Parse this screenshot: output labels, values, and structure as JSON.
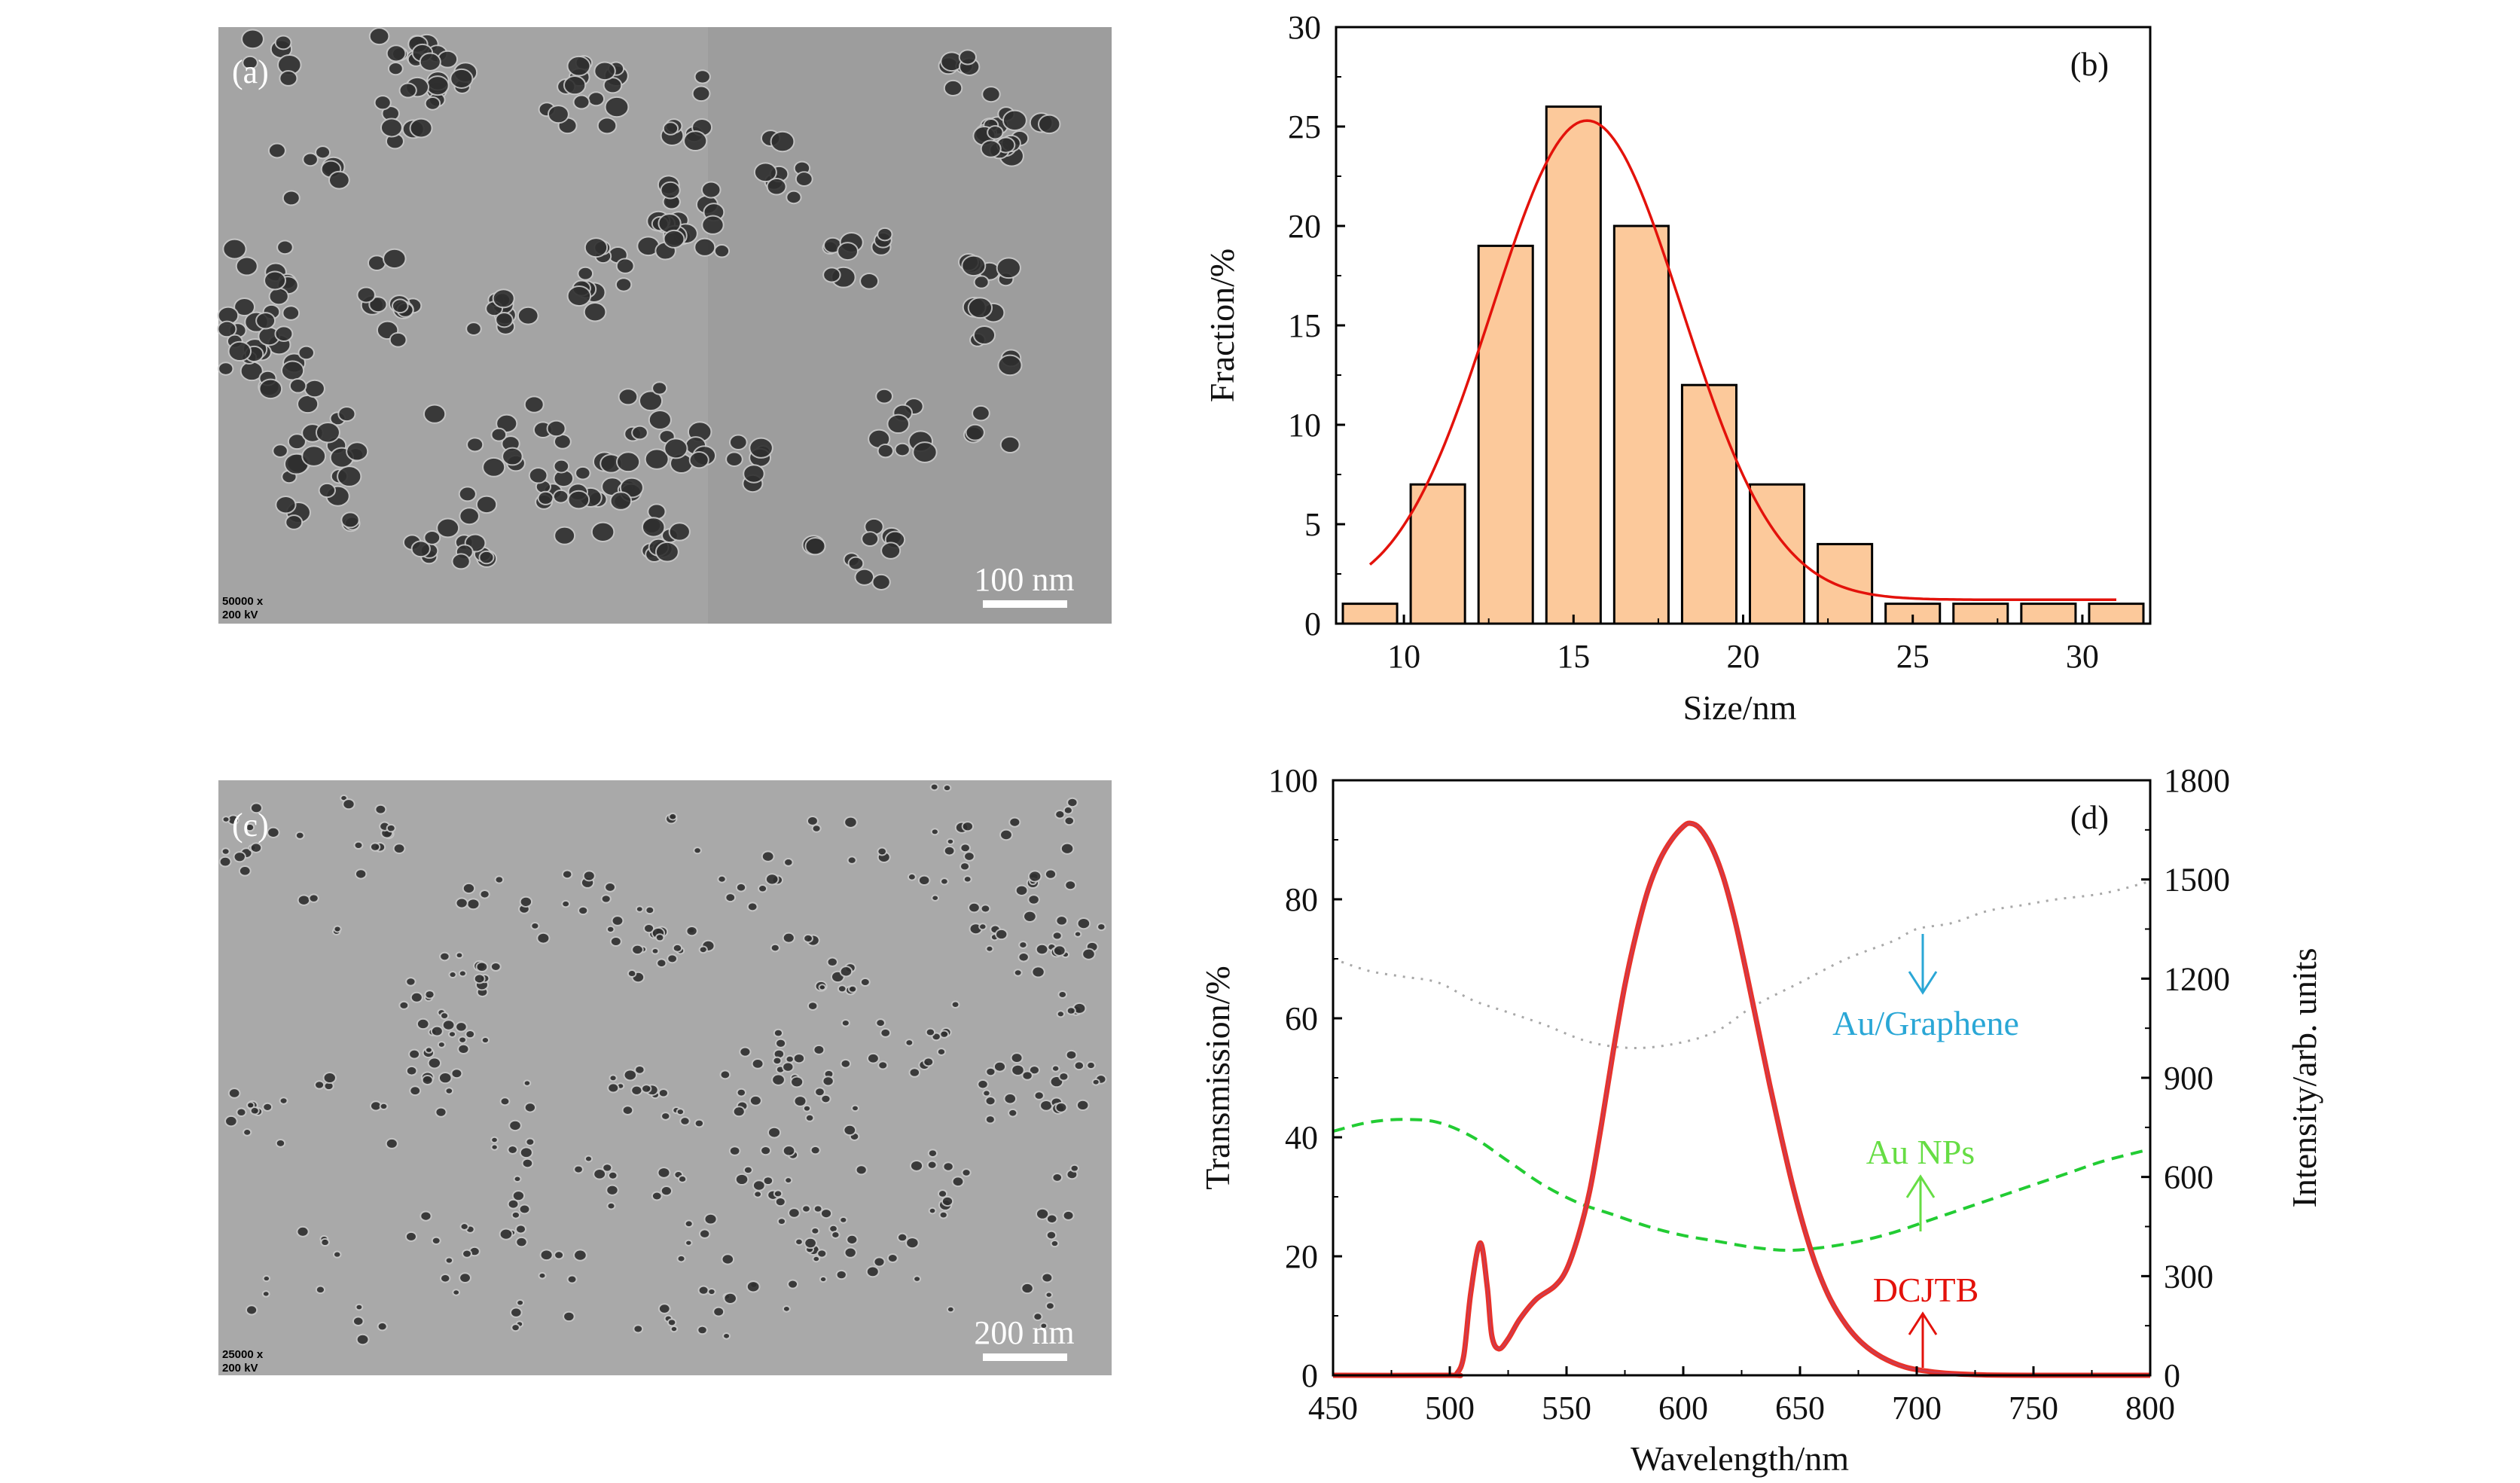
{
  "panels": {
    "a": {
      "label": "(a)",
      "scale_bar": "100 nm",
      "magnification": "50000 x",
      "voltage": "200 kV"
    },
    "c": {
      "label": "(c)",
      "scale_bar": "200 nm",
      "magnification": "25000 x",
      "voltage": "200 kV"
    }
  },
  "chart_data": [
    {
      "panel": "(b)",
      "type": "bar",
      "xlabel": "Size/nm",
      "ylabel": "Fraction/%",
      "xlim": [
        8,
        32
      ],
      "ylim": [
        0,
        30
      ],
      "xticks": [
        10,
        15,
        20,
        25,
        30
      ],
      "yticks": [
        0,
        5,
        10,
        15,
        20,
        25,
        30
      ],
      "bar_width": 1.6,
      "x": [
        9,
        11,
        13,
        15,
        17,
        19,
        21,
        23,
        25,
        27,
        29,
        31
      ],
      "values": [
        1,
        7,
        19,
        26,
        20,
        12,
        7,
        4,
        1,
        1,
        1,
        1
      ],
      "bar_color": "#fcc99b",
      "fit": {
        "type": "gaussian",
        "y0": 1.2,
        "xc": 15.4,
        "sigma": 2.8,
        "amplitude": 24.1,
        "range": [
          9,
          31
        ],
        "color": "#e3120b"
      },
      "grid": false
    },
    {
      "panel": "(d)",
      "type": "line",
      "xlabel": "Wavelength/nm",
      "ylabel": "Transmission/%",
      "ylabel_right": "Intensity/arb. units",
      "xlim": [
        450,
        800
      ],
      "ylim": [
        0,
        100
      ],
      "ylim_right": [
        0,
        1800
      ],
      "xticks": [
        450,
        500,
        550,
        600,
        650,
        700,
        750,
        800
      ],
      "yticks": [
        0,
        20,
        40,
        60,
        80,
        100
      ],
      "yticks_right": [
        0,
        300,
        600,
        900,
        1200,
        1500,
        1800
      ],
      "grid": false,
      "series": [
        {
          "name": "Au/Graphene",
          "axis": "left",
          "style": "dotted",
          "color": "#a8a8a8",
          "label_color": "#2aa7d6",
          "x": [
            450,
            465,
            480,
            495,
            510,
            525,
            540,
            560,
            580,
            600,
            615,
            630,
            650,
            670,
            690,
            700,
            715,
            730,
            745,
            760,
            780,
            800
          ],
          "y": [
            70,
            68,
            67,
            66,
            63,
            61,
            59,
            56,
            55,
            56,
            58,
            62,
            66,
            70,
            73,
            75,
            76,
            78,
            79,
            80,
            81,
            83
          ]
        },
        {
          "name": "Au NPs",
          "axis": "left",
          "style": "dashed",
          "color": "#22cc33",
          "label_color": "#66dd44",
          "x": [
            450,
            465,
            480,
            495,
            510,
            525,
            540,
            555,
            570,
            585,
            600,
            615,
            630,
            645,
            660,
            675,
            690,
            705,
            720,
            735,
            750,
            765,
            780,
            800
          ],
          "y": [
            41,
            42.5,
            43,
            42.5,
            40,
            36,
            32,
            29,
            27,
            25,
            23.5,
            22.5,
            21.5,
            21,
            21.5,
            22.5,
            24,
            26,
            28,
            30,
            32,
            34,
            36,
            38
          ]
        },
        {
          "name": "DCJTB",
          "axis": "right",
          "style": "solid-marker",
          "color": "#e8322a",
          "label_color": "#e3120b",
          "x": [
            450,
            500,
            503,
            506,
            509,
            513,
            516,
            518,
            521,
            525,
            530,
            537,
            545,
            550,
            555,
            560,
            565,
            570,
            575,
            580,
            585,
            590,
            595,
            600,
            603,
            607,
            612,
            617,
            622,
            627,
            632,
            637,
            642,
            647,
            652,
            657,
            663,
            670,
            677,
            685,
            695,
            705,
            715,
            730,
            750,
            800
          ],
          "y": [
            0,
            0,
            5,
            60,
            250,
            400,
            270,
            120,
            80,
            110,
            170,
            230,
            270,
            320,
            420,
            560,
            760,
            980,
            1180,
            1340,
            1470,
            1560,
            1620,
            1660,
            1670,
            1655,
            1600,
            1510,
            1380,
            1220,
            1050,
            880,
            720,
            570,
            440,
            330,
            230,
            150,
            95,
            55,
            25,
            12,
            5,
            1,
            0,
            0
          ]
        }
      ],
      "annotations": [
        {
          "text": "Au/Graphene",
          "arrow": "down"
        },
        {
          "text": "Au NPs",
          "arrow": "up"
        },
        {
          "text": "DCJTB",
          "arrow": "up"
        }
      ]
    }
  ]
}
